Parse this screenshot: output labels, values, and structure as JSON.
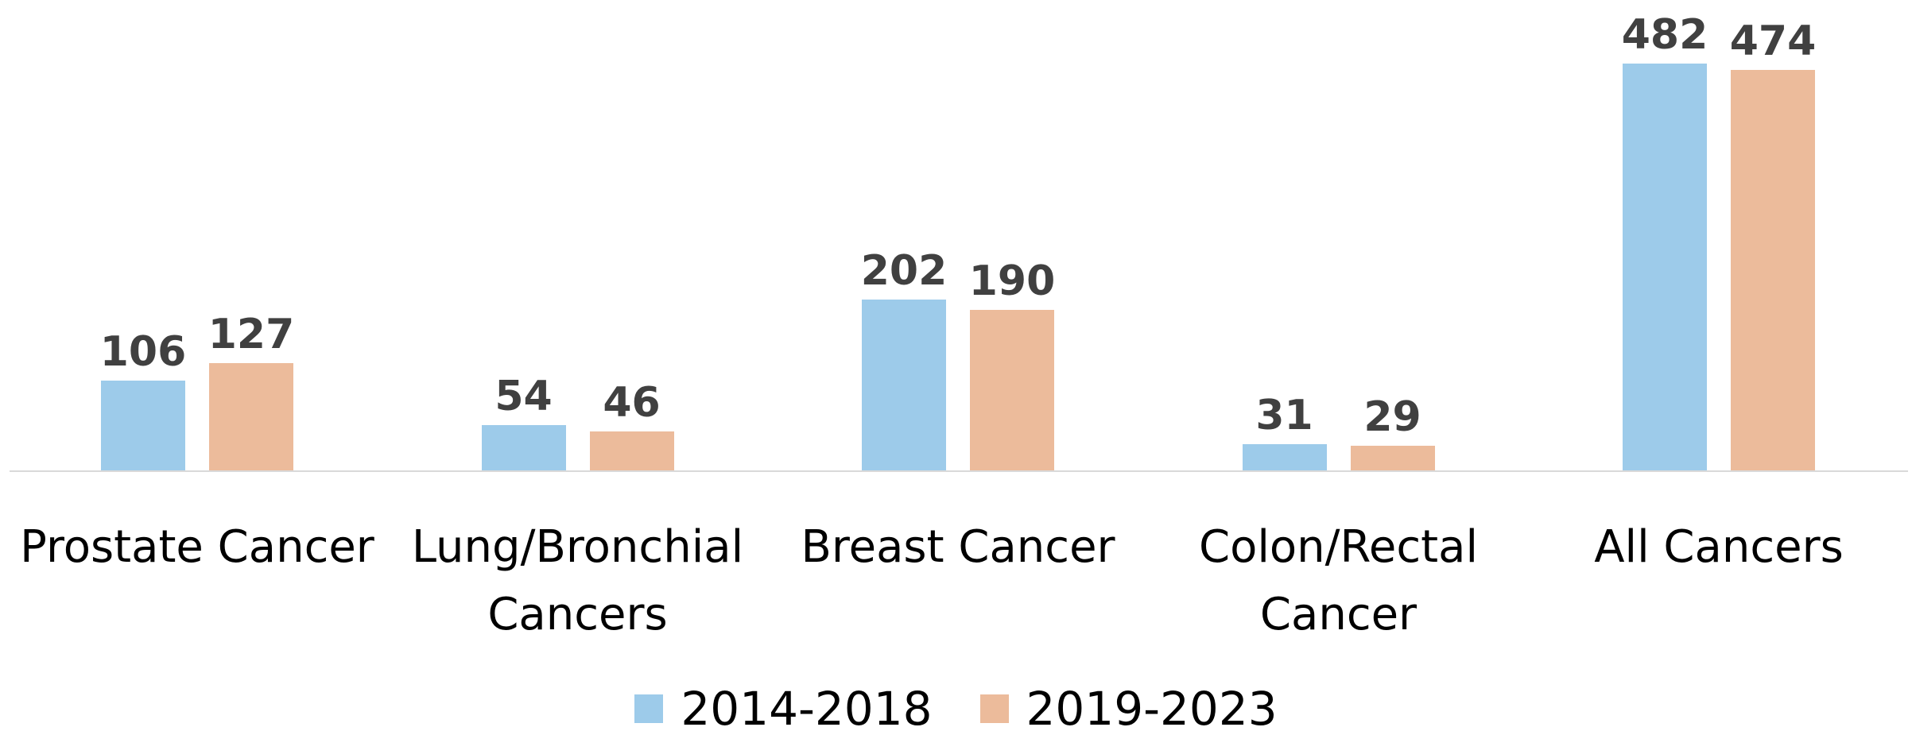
{
  "chart_data": {
    "type": "bar",
    "categories": [
      "Prostate Cancer",
      "Lung/Bronchial Cancers",
      "Breast Cancer",
      "Colon/Rectal Cancer",
      "All Cancers"
    ],
    "series": [
      {
        "name": "2014-2018",
        "color": "#9dcbea",
        "values": [
          106,
          54,
          202,
          31,
          482
        ]
      },
      {
        "name": "2019-2023",
        "color": "#ecbb9b",
        "values": [
          127,
          46,
          190,
          29,
          474
        ]
      }
    ],
    "legend": "bottom"
  }
}
